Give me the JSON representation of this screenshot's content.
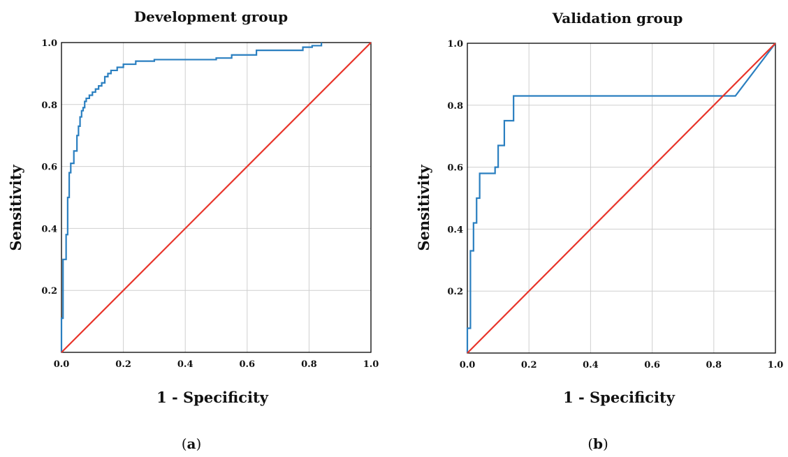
{
  "chart_data": [
    {
      "type": "line",
      "title": "Development group",
      "xlabel": "1 - Specificity",
      "ylabel": "Sensitivity",
      "xlim": [
        0,
        1
      ],
      "ylim": [
        0,
        1
      ],
      "x_ticks": [
        "0.0",
        "0.2",
        "0.4",
        "0.6",
        "0.8",
        "1.0"
      ],
      "y_ticks": [
        "0.2",
        "0.4",
        "0.6",
        "0.8",
        "1.0"
      ],
      "grid": true,
      "caption_letter": "a",
      "series": [
        {
          "color": "#2a7fc0",
          "x": [
            0,
            0,
            0.005,
            0.005,
            0.015,
            0.015,
            0.02,
            0.02,
            0.025,
            0.025,
            0.03,
            0.03,
            0.04,
            0.04,
            0.05,
            0.05,
            0.055,
            0.055,
            0.06,
            0.06,
            0.065,
            0.065,
            0.07,
            0.07,
            0.075,
            0.075,
            0.08,
            0.08,
            0.09,
            0.09,
            0.1,
            0.1,
            0.11,
            0.11,
            0.12,
            0.12,
            0.13,
            0.13,
            0.14,
            0.14,
            0.15,
            0.15,
            0.16,
            0.16,
            0.18,
            0.18,
            0.2,
            0.2,
            0.24,
            0.24,
            0.3,
            0.3,
            0.5,
            0.5,
            0.55,
            0.55,
            0.63,
            0.63,
            0.78,
            0.78,
            0.81,
            0.81,
            0.84,
            0.84
          ],
          "y": [
            0,
            0.11,
            0.11,
            0.3,
            0.3,
            0.38,
            0.38,
            0.5,
            0.5,
            0.58,
            0.58,
            0.61,
            0.61,
            0.65,
            0.65,
            0.7,
            0.7,
            0.73,
            0.73,
            0.76,
            0.76,
            0.78,
            0.78,
            0.79,
            0.79,
            0.81,
            0.81,
            0.82,
            0.82,
            0.83,
            0.83,
            0.84,
            0.84,
            0.85,
            0.85,
            0.86,
            0.86,
            0.87,
            0.87,
            0.89,
            0.89,
            0.9,
            0.9,
            0.91,
            0.91,
            0.92,
            0.92,
            0.93,
            0.93,
            0.94,
            0.94,
            0.945,
            0.945,
            0.95,
            0.95,
            0.96,
            0.96,
            0.975,
            0.975,
            0.985,
            0.985,
            0.99,
            0.99,
            1.0
          ]
        },
        {
          "color": "#e8342a",
          "x": [
            0,
            1
          ],
          "y": [
            0,
            1
          ]
        }
      ]
    },
    {
      "type": "line",
      "title": "Validation group",
      "xlabel": "1 - Specificity",
      "ylabel": "Sensitivity",
      "xlim": [
        0,
        1
      ],
      "ylim": [
        0,
        1
      ],
      "x_ticks": [
        "0.0",
        "0.2",
        "0.4",
        "0.6",
        "0.8",
        "1.0"
      ],
      "y_ticks": [
        "0.2",
        "0.4",
        "0.6",
        "0.8",
        "1.0"
      ],
      "grid": true,
      "caption_letter": "b",
      "series": [
        {
          "color": "#2a7fc0",
          "x": [
            0,
            0,
            0.01,
            0.01,
            0.02,
            0.02,
            0.03,
            0.03,
            0.04,
            0.04,
            0.05,
            0.05,
            0.09,
            0.09,
            0.1,
            0.1,
            0.12,
            0.12,
            0.15,
            0.15,
            0.87,
            1.0
          ],
          "y": [
            0,
            0.08,
            0.08,
            0.33,
            0.33,
            0.42,
            0.42,
            0.5,
            0.5,
            0.58,
            0.58,
            0.58,
            0.58,
            0.6,
            0.6,
            0.67,
            0.67,
            0.75,
            0.75,
            0.83,
            0.83,
            1.0
          ]
        },
        {
          "color": "#e8342a",
          "x": [
            0,
            1
          ],
          "y": [
            0,
            1
          ]
        }
      ]
    }
  ]
}
